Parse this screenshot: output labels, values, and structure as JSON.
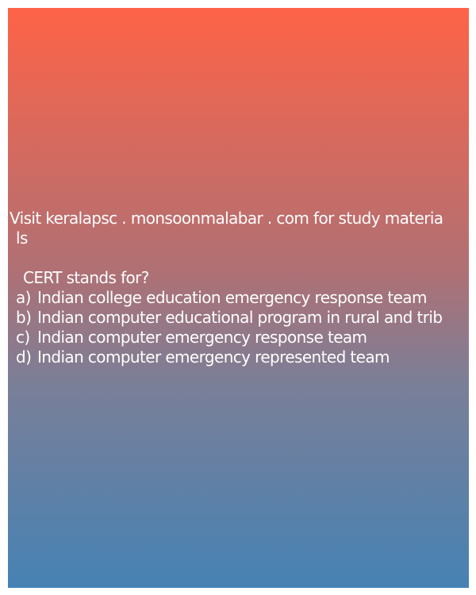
{
  "header": {
    "line1": "Visit keralapsc . monsoonmalabar . com for study materia",
    "line2": "ls"
  },
  "question": {
    "text": "CERT stands for?",
    "options": [
      {
        "letter": "a)",
        "text": "Indian college education emergency response team"
      },
      {
        "letter": "b)",
        "text": "Indian computer educational program in rural and trib"
      },
      {
        "letter": "c)",
        "text": "Indian computer emergency response team"
      },
      {
        "letter": "d)",
        "text": "Indian computer emergency represented team"
      }
    ]
  },
  "colors": {
    "gradient_top": "#fe6347",
    "gradient_bottom": "#4682b4",
    "text": "#ffffff"
  }
}
